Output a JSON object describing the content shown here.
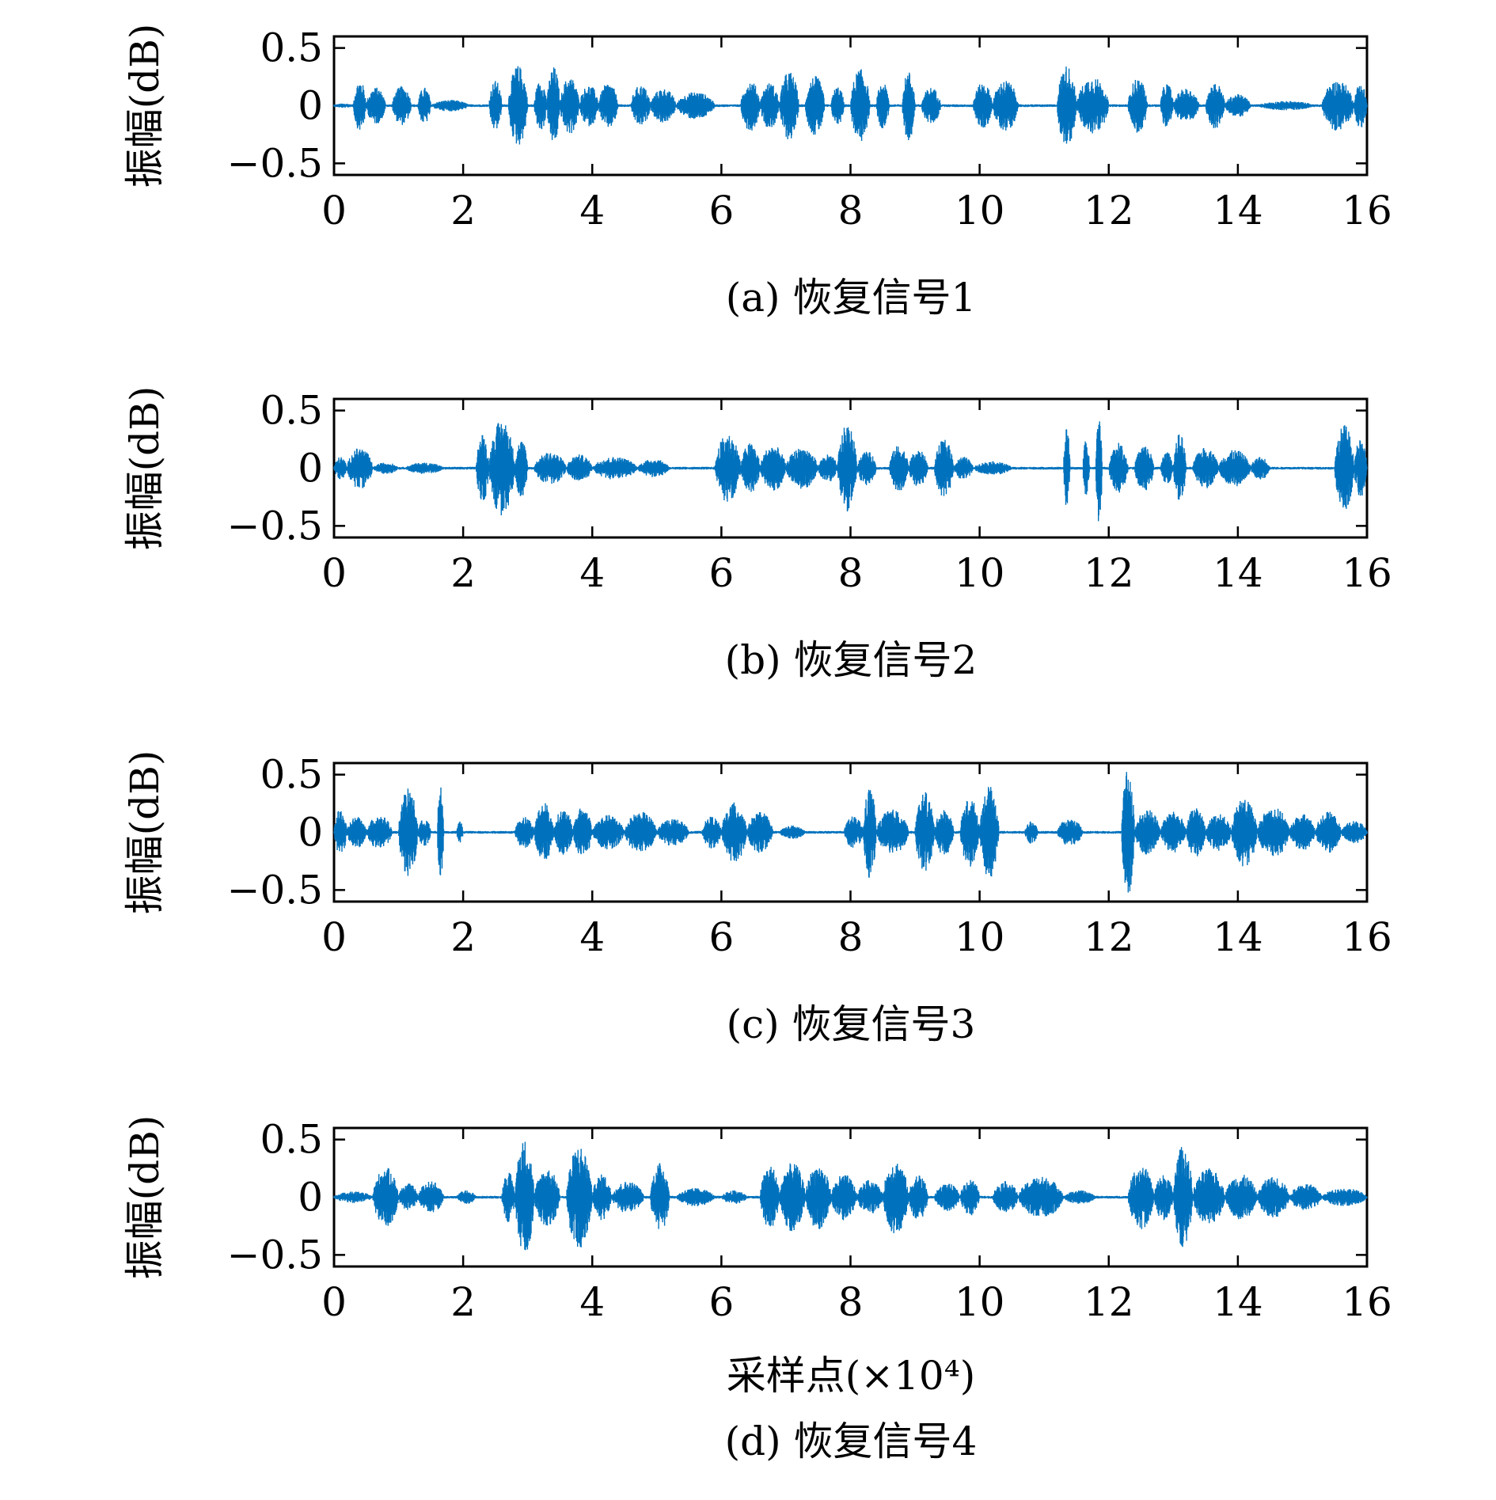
{
  "figure": {
    "xlabel": "采样点(×10⁴)",
    "wave_color": "#0072BD"
  },
  "chart_data": [
    {
      "type": "line",
      "caption": "(a) 恢复信号1",
      "ylabel": "振幅(dB)",
      "xlim": [
        0,
        16
      ],
      "ylim": [
        -0.6,
        0.6
      ],
      "xticks": [
        "0",
        "2",
        "4",
        "6",
        "8",
        "10",
        "12",
        "14",
        "16"
      ],
      "yticks": [
        {
          "value": 0.5,
          "label": "0.5"
        },
        {
          "value": 0,
          "label": "0"
        },
        {
          "value": -0.5,
          "label": "−0.5"
        }
      ],
      "segments": [
        [
          0.0,
          0.3,
          0.02
        ],
        [
          0.3,
          0.5,
          0.22
        ],
        [
          0.5,
          0.8,
          0.16
        ],
        [
          0.9,
          1.2,
          0.17
        ],
        [
          1.3,
          1.5,
          0.16
        ],
        [
          1.5,
          2.1,
          0.05
        ],
        [
          2.4,
          2.6,
          0.22
        ],
        [
          2.7,
          3.0,
          0.35
        ],
        [
          3.1,
          3.3,
          0.22
        ],
        [
          3.3,
          3.5,
          0.34
        ],
        [
          3.5,
          3.8,
          0.25
        ],
        [
          3.8,
          4.1,
          0.18
        ],
        [
          4.1,
          4.4,
          0.2
        ],
        [
          4.6,
          4.9,
          0.18
        ],
        [
          4.9,
          5.3,
          0.15
        ],
        [
          5.3,
          5.9,
          0.12
        ],
        [
          6.3,
          6.6,
          0.22
        ],
        [
          6.6,
          6.9,
          0.2
        ],
        [
          6.9,
          7.2,
          0.3
        ],
        [
          7.3,
          7.6,
          0.26
        ],
        [
          7.7,
          7.9,
          0.17
        ],
        [
          8.0,
          8.3,
          0.32
        ],
        [
          8.4,
          8.6,
          0.2
        ],
        [
          8.8,
          9.0,
          0.3
        ],
        [
          9.1,
          9.4,
          0.16
        ],
        [
          9.9,
          10.2,
          0.2
        ],
        [
          10.2,
          10.6,
          0.22
        ],
        [
          11.2,
          11.5,
          0.35
        ],
        [
          11.5,
          12.0,
          0.25
        ],
        [
          12.3,
          12.6,
          0.24
        ],
        [
          12.8,
          13.0,
          0.2
        ],
        [
          13.0,
          13.4,
          0.15
        ],
        [
          13.5,
          13.8,
          0.2
        ],
        [
          13.8,
          14.2,
          0.1
        ],
        [
          14.3,
          15.2,
          0.04
        ],
        [
          15.3,
          15.8,
          0.22
        ],
        [
          15.8,
          16.0,
          0.2
        ]
      ]
    },
    {
      "type": "line",
      "caption": "(b) 恢复信号2",
      "ylabel": "振幅(dB)",
      "xlim": [
        0,
        16
      ],
      "ylim": [
        -0.6,
        0.6
      ],
      "xticks": [
        "0",
        "2",
        "4",
        "6",
        "8",
        "10",
        "12",
        "14",
        "16"
      ],
      "yticks": [
        {
          "value": 0.5,
          "label": "0.5"
        },
        {
          "value": 0,
          "label": "0"
        },
        {
          "value": -0.5,
          "label": "−0.5"
        }
      ],
      "segments": [
        [
          0.0,
          0.2,
          0.1
        ],
        [
          0.2,
          0.6,
          0.18
        ],
        [
          0.6,
          1.0,
          0.05
        ],
        [
          1.1,
          1.7,
          0.05
        ],
        [
          2.2,
          2.4,
          0.3
        ],
        [
          2.4,
          2.8,
          0.42
        ],
        [
          2.8,
          3.0,
          0.25
        ],
        [
          3.1,
          3.6,
          0.14
        ],
        [
          3.6,
          4.0,
          0.12
        ],
        [
          4.0,
          4.7,
          0.1
        ],
        [
          4.7,
          5.2,
          0.08
        ],
        [
          5.9,
          6.3,
          0.3
        ],
        [
          6.3,
          6.6,
          0.22
        ],
        [
          6.6,
          7.0,
          0.2
        ],
        [
          7.0,
          7.5,
          0.18
        ],
        [
          7.5,
          7.8,
          0.12
        ],
        [
          7.8,
          8.1,
          0.38
        ],
        [
          8.1,
          8.4,
          0.15
        ],
        [
          8.6,
          8.9,
          0.2
        ],
        [
          8.9,
          9.2,
          0.16
        ],
        [
          9.3,
          9.6,
          0.25
        ],
        [
          9.6,
          9.9,
          0.1
        ],
        [
          9.9,
          10.5,
          0.06
        ],
        [
          11.3,
          11.4,
          0.35
        ],
        [
          11.6,
          11.7,
          0.25
        ],
        [
          11.8,
          11.9,
          0.48
        ],
        [
          12.0,
          12.3,
          0.22
        ],
        [
          12.4,
          12.7,
          0.2
        ],
        [
          12.8,
          13.0,
          0.14
        ],
        [
          13.0,
          13.2,
          0.3
        ],
        [
          13.3,
          13.7,
          0.18
        ],
        [
          13.7,
          14.2,
          0.16
        ],
        [
          14.2,
          14.5,
          0.1
        ],
        [
          15.5,
          15.8,
          0.38
        ],
        [
          15.8,
          16.0,
          0.25
        ]
      ]
    },
    {
      "type": "line",
      "caption": "(c) 恢复信号3",
      "ylabel": "振幅(dB)",
      "xlim": [
        0,
        16
      ],
      "ylim": [
        -0.6,
        0.6
      ],
      "xticks": [
        "0",
        "2",
        "4",
        "6",
        "8",
        "10",
        "12",
        "14",
        "16"
      ],
      "yticks": [
        {
          "value": 0.5,
          "label": "0.5"
        },
        {
          "value": 0,
          "label": "0"
        },
        {
          "value": -0.5,
          "label": "−0.5"
        }
      ],
      "segments": [
        [
          0.0,
          0.2,
          0.2
        ],
        [
          0.2,
          0.5,
          0.14
        ],
        [
          0.5,
          0.9,
          0.15
        ],
        [
          1.0,
          1.3,
          0.38
        ],
        [
          1.3,
          1.5,
          0.12
        ],
        [
          1.6,
          1.7,
          0.4
        ],
        [
          1.9,
          2.0,
          0.1
        ],
        [
          2.8,
          3.1,
          0.14
        ],
        [
          3.1,
          3.4,
          0.26
        ],
        [
          3.4,
          3.7,
          0.2
        ],
        [
          3.7,
          4.0,
          0.22
        ],
        [
          4.0,
          4.5,
          0.15
        ],
        [
          4.5,
          5.0,
          0.18
        ],
        [
          5.0,
          5.5,
          0.12
        ],
        [
          5.7,
          6.0,
          0.14
        ],
        [
          6.0,
          6.4,
          0.26
        ],
        [
          6.4,
          6.8,
          0.18
        ],
        [
          6.9,
          7.3,
          0.06
        ],
        [
          7.9,
          8.2,
          0.14
        ],
        [
          8.2,
          8.4,
          0.4
        ],
        [
          8.4,
          8.9,
          0.2
        ],
        [
          9.0,
          9.3,
          0.35
        ],
        [
          9.3,
          9.6,
          0.2
        ],
        [
          9.7,
          10.0,
          0.3
        ],
        [
          10.0,
          10.3,
          0.4
        ],
        [
          10.7,
          10.9,
          0.1
        ],
        [
          11.2,
          11.6,
          0.12
        ],
        [
          12.2,
          12.4,
          0.55
        ],
        [
          12.4,
          12.8,
          0.2
        ],
        [
          12.8,
          13.2,
          0.18
        ],
        [
          13.2,
          13.5,
          0.22
        ],
        [
          13.5,
          13.9,
          0.16
        ],
        [
          13.9,
          14.3,
          0.3
        ],
        [
          14.3,
          14.8,
          0.22
        ],
        [
          14.8,
          15.2,
          0.16
        ],
        [
          15.2,
          15.6,
          0.18
        ],
        [
          15.6,
          16.0,
          0.1
        ]
      ]
    },
    {
      "type": "line",
      "caption": "(d) 恢复信号4",
      "ylabel": "振幅(dB)",
      "xlabel": "采样点(×10⁴)",
      "xlim": [
        0,
        16
      ],
      "ylim": [
        -0.6,
        0.6
      ],
      "xticks": [
        "0",
        "2",
        "4",
        "6",
        "8",
        "10",
        "12",
        "14",
        "16"
      ],
      "yticks": [
        {
          "value": 0.5,
          "label": "0.5"
        },
        {
          "value": 0,
          "label": "0"
        },
        {
          "value": -0.5,
          "label": "−0.5"
        }
      ],
      "segments": [
        [
          0.0,
          0.6,
          0.05
        ],
        [
          0.6,
          1.0,
          0.26
        ],
        [
          1.0,
          1.3,
          0.12
        ],
        [
          1.3,
          1.7,
          0.14
        ],
        [
          1.9,
          2.2,
          0.06
        ],
        [
          2.6,
          2.8,
          0.22
        ],
        [
          2.8,
          3.1,
          0.5
        ],
        [
          3.1,
          3.5,
          0.25
        ],
        [
          3.6,
          4.0,
          0.45
        ],
        [
          4.0,
          4.3,
          0.2
        ],
        [
          4.3,
          4.8,
          0.14
        ],
        [
          4.9,
          5.2,
          0.3
        ],
        [
          5.3,
          5.9,
          0.08
        ],
        [
          6.0,
          6.4,
          0.06
        ],
        [
          6.6,
          6.9,
          0.28
        ],
        [
          6.9,
          7.3,
          0.3
        ],
        [
          7.3,
          7.7,
          0.28
        ],
        [
          7.7,
          8.1,
          0.2
        ],
        [
          8.1,
          8.5,
          0.15
        ],
        [
          8.5,
          8.9,
          0.32
        ],
        [
          8.9,
          9.2,
          0.2
        ],
        [
          9.3,
          9.7,
          0.12
        ],
        [
          9.7,
          10.0,
          0.16
        ],
        [
          10.2,
          10.6,
          0.14
        ],
        [
          10.6,
          11.3,
          0.18
        ],
        [
          11.3,
          11.8,
          0.06
        ],
        [
          12.3,
          12.7,
          0.28
        ],
        [
          12.7,
          13.0,
          0.2
        ],
        [
          13.0,
          13.3,
          0.45
        ],
        [
          13.3,
          13.8,
          0.25
        ],
        [
          13.8,
          14.3,
          0.2
        ],
        [
          14.3,
          14.8,
          0.18
        ],
        [
          14.8,
          15.3,
          0.12
        ],
        [
          15.3,
          16.0,
          0.08
        ]
      ]
    }
  ]
}
